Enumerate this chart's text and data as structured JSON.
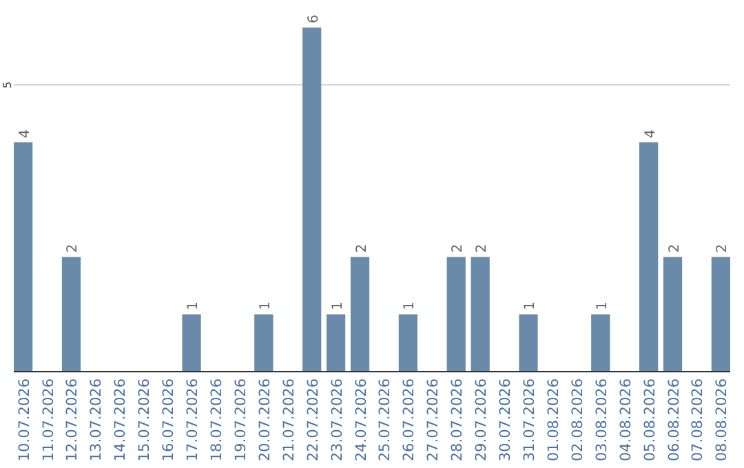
{
  "chart_data": {
    "type": "bar",
    "categories": [
      "10.07.2026",
      "11.07.2026",
      "12.07.2026",
      "13.07.2026",
      "14.07.2026",
      "15.07.2026",
      "16.07.2026",
      "17.07.2026",
      "18.07.2026",
      "19.07.2026",
      "20.07.2026",
      "21.07.2026",
      "22.07.2026",
      "23.07.2026",
      "24.07.2026",
      "25.07.2026",
      "26.07.2026",
      "27.07.2026",
      "28.07.2026",
      "29.07.2026",
      "30.07.2026",
      "31.07.2026",
      "01.08.2026",
      "02.08.2026",
      "03.08.2026",
      "04.08.2026",
      "05.08.2026",
      "06.08.2026",
      "07.08.2026",
      "08.08.2026"
    ],
    "values": [
      4,
      0,
      2,
      0,
      0,
      0,
      0,
      1,
      0,
      0,
      1,
      0,
      6,
      1,
      2,
      0,
      1,
      0,
      2,
      2,
      0,
      1,
      0,
      0,
      1,
      0,
      4,
      2,
      0,
      2
    ],
    "value_labels": [
      "4",
      null,
      "2",
      null,
      null,
      null,
      null,
      "1",
      null,
      null,
      "1",
      null,
      "6",
      "1",
      "2",
      null,
      "1",
      null,
      "2",
      "2",
      null,
      "1",
      null,
      null,
      "1",
      null,
      "4",
      "2",
      null,
      "2"
    ],
    "color": "#6a8aaa",
    "ref_lines": [
      {
        "axis": "y",
        "value": 5,
        "label": "5",
        "color": "#cccccc"
      }
    ]
  }
}
